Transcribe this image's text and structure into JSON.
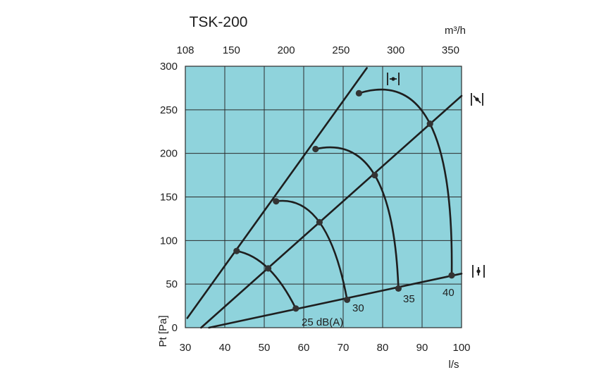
{
  "chart_data": {
    "type": "line",
    "title": "TSK-200",
    "x_axis": {
      "label": "l/s",
      "range": [
        30,
        100
      ],
      "ticks": [
        30,
        40,
        50,
        60,
        70,
        80,
        90,
        100
      ]
    },
    "x_top_axis": {
      "label": "m³/h",
      "range": [
        108,
        360
      ],
      "ticks": [
        108,
        150,
        200,
        250,
        300,
        350
      ]
    },
    "y_axis": {
      "label": "Pt [Pa]",
      "range": [
        0,
        300
      ],
      "ticks": [
        0,
        50,
        100,
        150,
        200,
        250,
        300
      ]
    },
    "grid": true,
    "colors": {
      "plot_background": "#8fd3dc",
      "grid": "#2b2b2b",
      "curve": "#1e1e1e"
    },
    "damper_lines": [
      {
        "icon": "damper-closed-icon",
        "points": [
          [
            30.5,
            11
          ],
          [
            76,
            298
          ]
        ]
      },
      {
        "icon": "damper-half-open-icon",
        "points": [
          [
            34,
            0
          ],
          [
            100,
            266
          ]
        ]
      },
      {
        "icon": "damper-open-icon",
        "points": [
          [
            36,
            0
          ],
          [
            100,
            62
          ]
        ]
      }
    ],
    "sound_curves": [
      {
        "label": "25 dB(A)",
        "points": [
          [
            43,
            88
          ],
          [
            51,
            68
          ],
          [
            58,
            22
          ]
        ]
      },
      {
        "label": "30",
        "points": [
          [
            53,
            145
          ],
          [
            64,
            121
          ],
          [
            71,
            32
          ]
        ]
      },
      {
        "label": "35",
        "points": [
          [
            63,
            205
          ],
          [
            78,
            175
          ],
          [
            84,
            45
          ]
        ]
      },
      {
        "label": "40",
        "points": [
          [
            74,
            269
          ],
          [
            92,
            234
          ],
          [
            97.5,
            60
          ]
        ]
      }
    ]
  }
}
